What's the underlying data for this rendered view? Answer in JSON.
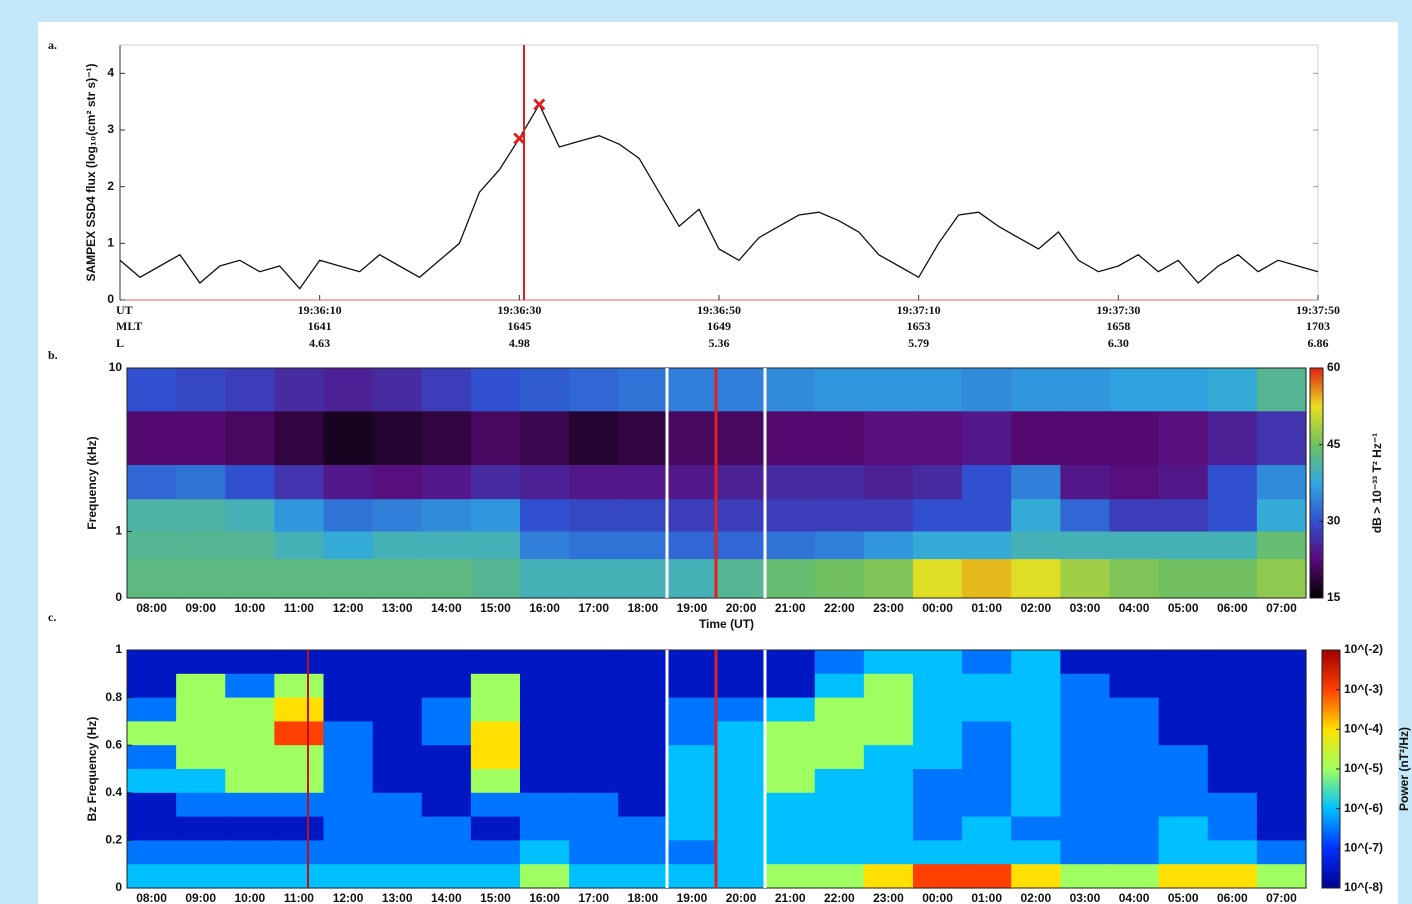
{
  "chart_data": [
    {
      "type": "line",
      "panel_label": "a.",
      "ylabel": "SAMPEX SSD4 flux (log₁₀(cm² str s)⁻¹)",
      "color": "#111111",
      "x": [
        "19:35:50",
        "19:35:52",
        "19:35:54",
        "19:35:56",
        "19:35:58",
        "19:36:00",
        "19:36:02",
        "19:36:04",
        "19:36:06",
        "19:36:08",
        "19:36:10",
        "19:36:12",
        "19:36:14",
        "19:36:16",
        "19:36:18",
        "19:36:20",
        "19:36:22",
        "19:36:24",
        "19:36:26",
        "19:36:28",
        "19:36:30",
        "19:36:32",
        "19:36:34",
        "19:36:36",
        "19:36:38",
        "19:36:40",
        "19:36:42",
        "19:36:44",
        "19:36:46",
        "19:36:48",
        "19:36:50",
        "19:36:52",
        "19:36:54",
        "19:36:56",
        "19:36:58",
        "19:37:00",
        "19:37:02",
        "19:37:04",
        "19:37:06",
        "19:37:08",
        "19:37:10",
        "19:37:12",
        "19:37:14",
        "19:37:16",
        "19:37:18",
        "19:37:20",
        "19:37:22",
        "19:37:24",
        "19:37:26",
        "19:37:28",
        "19:37:30",
        "19:37:32",
        "19:37:34",
        "19:37:36",
        "19:37:38",
        "19:37:40",
        "19:37:42",
        "19:37:44",
        "19:37:46",
        "19:37:48",
        "19:37:50"
      ],
      "values": [
        0.7,
        0.4,
        0.6,
        0.8,
        0.3,
        0.6,
        0.7,
        0.5,
        0.6,
        0.2,
        0.7,
        0.6,
        0.5,
        0.8,
        0.6,
        0.4,
        0.7,
        1.0,
        1.9,
        2.3,
        2.85,
        3.45,
        2.7,
        2.8,
        2.9,
        2.75,
        2.5,
        1.9,
        1.3,
        1.6,
        0.9,
        0.7,
        1.1,
        1.3,
        1.5,
        1.55,
        1.4,
        1.2,
        0.8,
        0.6,
        0.4,
        1.0,
        1.5,
        1.55,
        1.3,
        1.1,
        0.9,
        1.2,
        0.7,
        0.5,
        0.6,
        0.8,
        0.5,
        0.7,
        0.3,
        0.6,
        0.8,
        0.5,
        0.7,
        0.6,
        0.5
      ],
      "markers": {
        "color": "#e02020",
        "x": [
          "19:36:30",
          "19:36:32"
        ],
        "values": [
          2.85,
          3.45
        ]
      },
      "xlim": [
        "19:35:50",
        "19:37:50"
      ],
      "xticks": [
        "19:36:10",
        "19:36:30",
        "19:36:50",
        "19:37:10",
        "19:37:30",
        "19:37:50"
      ],
      "row_labels": [
        "UT",
        "MLT",
        "L"
      ],
      "mlt": [
        "1641",
        "1645",
        "1649",
        "1653",
        "1658",
        "1703"
      ],
      "l_shell": [
        "4.63",
        "4.98",
        "5.36",
        "5.79",
        "6.30",
        "6.86"
      ],
      "ylim": [
        0,
        4.5
      ],
      "yticks": [
        0,
        1,
        2,
        3,
        4
      ]
    },
    {
      "type": "heatmap",
      "panel_label": "b.",
      "ylabel": "Frequency (kHz)",
      "xlabel": "Time (UT)",
      "categories": [
        "08:00",
        "09:00",
        "10:00",
        "11:00",
        "12:00",
        "13:00",
        "14:00",
        "15:00",
        "16:00",
        "17:00",
        "18:00",
        "19:00",
        "20:00",
        "21:00",
        "22:00",
        "23:00",
        "00:00",
        "01:00",
        "02:00",
        "03:00",
        "04:00",
        "05:00",
        "06:00",
        "07:00"
      ],
      "yscale": "log1p",
      "ylim": [
        0,
        10
      ],
      "yticks": [
        0,
        1,
        10
      ],
      "y_edges": [
        10,
        6,
        3,
        1.8,
        1,
        0.5,
        0
      ],
      "values": [
        [
          30,
          29,
          28,
          26,
          25,
          26,
          28,
          30,
          31,
          32,
          33,
          34,
          34,
          35,
          36,
          36,
          36,
          35,
          36,
          36,
          37,
          37,
          38,
          42
        ],
        [
          22,
          22,
          21,
          19,
          17,
          18,
          19,
          21,
          20,
          18,
          19,
          21,
          21,
          22,
          22,
          23,
          23,
          24,
          22,
          22,
          22,
          23,
          25,
          27
        ],
        [
          32,
          33,
          30,
          27,
          24,
          23,
          24,
          26,
          25,
          24,
          24,
          24,
          25,
          26,
          26,
          25,
          26,
          30,
          34,
          24,
          23,
          24,
          30,
          35
        ],
        [
          41,
          41,
          40,
          36,
          33,
          34,
          35,
          36,
          30,
          29,
          29,
          28,
          28,
          28,
          28,
          28,
          30,
          30,
          38,
          32,
          28,
          28,
          30,
          38
        ],
        [
          42,
          42,
          42,
          40,
          38,
          40,
          40,
          40,
          34,
          33,
          33,
          32,
          32,
          33,
          34,
          36,
          38,
          38,
          40,
          40,
          40,
          40,
          40,
          44
        ],
        [
          43,
          43,
          43,
          43,
          43,
          43,
          43,
          42,
          40,
          40,
          40,
          40,
          42,
          44,
          45,
          46,
          52,
          54,
          52,
          48,
          46,
          45,
          45,
          47
        ]
      ],
      "colormap": [
        "#000000",
        "#5a0a78",
        "#3050d0",
        "#30a8e0",
        "#70c060",
        "#e8e020",
        "#e02010"
      ],
      "clim": [
        15,
        60
      ],
      "cticks": [
        15,
        30,
        45,
        60
      ],
      "clabel": "dB > 10⁻³³ T² Hz⁻¹"
    },
    {
      "type": "heatmap",
      "panel_label": "c.",
      "ylabel": "Bz Frequency (Hz)",
      "categories": [
        "08:00",
        "09:00",
        "10:00",
        "11:00",
        "12:00",
        "13:00",
        "14:00",
        "15:00",
        "16:00",
        "17:00",
        "18:00",
        "19:00",
        "20:00",
        "21:00",
        "22:00",
        "23:00",
        "00:00",
        "01:00",
        "02:00",
        "03:00",
        "04:00",
        "05:00",
        "06:00",
        "07:00"
      ],
      "yscale": "linear",
      "ylim": [
        0,
        1
      ],
      "yticks": [
        0,
        0.2,
        0.4,
        0.6,
        0.8,
        1
      ],
      "y_edges": [
        1,
        0.9,
        0.8,
        0.7,
        0.6,
        0.5,
        0.4,
        0.3,
        0.2,
        0.1,
        0
      ],
      "values": [
        [
          3e-08,
          3e-08,
          3e-08,
          3e-08,
          3e-08,
          3e-08,
          3e-08,
          3e-08,
          3e-08,
          3e-08,
          3e-08,
          3e-08,
          3e-08,
          3e-08,
          3e-07,
          1e-06,
          1e-06,
          3e-07,
          1e-06,
          3e-08,
          3e-08,
          3e-08,
          3e-08,
          3e-08
        ],
        [
          3e-08,
          1e-05,
          3e-07,
          1e-05,
          3e-08,
          3e-08,
          3e-08,
          1e-05,
          3e-08,
          3e-08,
          3e-08,
          3e-08,
          3e-08,
          3e-08,
          1e-06,
          1e-05,
          1e-06,
          1e-06,
          1e-06,
          3e-07,
          3e-08,
          3e-08,
          3e-08,
          3e-08
        ],
        [
          3e-07,
          1e-05,
          1e-05,
          0.0001,
          3e-08,
          3e-08,
          3e-07,
          1e-05,
          3e-08,
          3e-08,
          3e-08,
          3e-07,
          3e-07,
          1e-06,
          1e-05,
          1e-05,
          1e-06,
          1e-06,
          1e-06,
          3e-07,
          3e-07,
          3e-08,
          3e-08,
          3e-08
        ],
        [
          1e-05,
          1e-05,
          1e-05,
          0.001,
          3e-07,
          3e-08,
          3e-07,
          0.0001,
          3e-08,
          3e-08,
          3e-08,
          3e-07,
          1e-06,
          1e-05,
          1e-05,
          1e-05,
          1e-06,
          3e-07,
          1e-06,
          3e-07,
          3e-07,
          3e-08,
          3e-08,
          3e-08
        ],
        [
          3e-07,
          1e-05,
          1e-05,
          1e-05,
          3e-07,
          3e-08,
          3e-08,
          0.0001,
          3e-08,
          3e-08,
          3e-08,
          1e-06,
          1e-06,
          1e-05,
          1e-05,
          1e-06,
          1e-06,
          3e-07,
          1e-06,
          3e-07,
          3e-07,
          3e-07,
          3e-08,
          3e-08
        ],
        [
          1e-06,
          1e-06,
          1e-05,
          1e-05,
          3e-07,
          3e-08,
          3e-08,
          1e-05,
          3e-08,
          3e-08,
          3e-08,
          1e-06,
          1e-06,
          1e-05,
          1e-06,
          1e-06,
          3e-07,
          3e-07,
          1e-06,
          3e-07,
          3e-07,
          3e-07,
          3e-08,
          3e-08
        ],
        [
          3e-08,
          3e-07,
          3e-07,
          3e-07,
          3e-07,
          3e-07,
          3e-08,
          3e-07,
          3e-07,
          3e-07,
          3e-08,
          1e-06,
          1e-06,
          1e-06,
          1e-06,
          1e-06,
          3e-07,
          3e-07,
          1e-06,
          3e-07,
          3e-07,
          3e-07,
          3e-07,
          3e-08
        ],
        [
          3e-08,
          3e-08,
          3e-08,
          3e-08,
          3e-07,
          3e-07,
          3e-07,
          3e-08,
          3e-07,
          3e-07,
          3e-07,
          1e-06,
          1e-06,
          1e-06,
          1e-06,
          1e-06,
          3e-07,
          1e-06,
          3e-07,
          3e-07,
          3e-07,
          1e-06,
          3e-07,
          3e-08
        ],
        [
          3e-07,
          3e-07,
          3e-07,
          3e-07,
          3e-07,
          3e-07,
          3e-07,
          3e-07,
          1e-06,
          3e-07,
          3e-07,
          3e-07,
          1e-06,
          1e-06,
          1e-06,
          1e-06,
          1e-06,
          1e-06,
          1e-06,
          3e-07,
          3e-07,
          1e-06,
          1e-06,
          3e-07
        ],
        [
          1e-06,
          1e-06,
          1e-06,
          1e-06,
          1e-06,
          1e-06,
          1e-06,
          1e-06,
          1e-05,
          1e-06,
          1e-06,
          1e-06,
          1e-06,
          1e-05,
          1e-05,
          0.0001,
          0.001,
          0.001,
          0.0001,
          1e-05,
          1e-05,
          0.0001,
          0.0001,
          1e-05
        ]
      ],
      "colormap": [
        "#00008f",
        "#0030ff",
        "#00c0ff",
        "#a0ff60",
        "#ffe000",
        "#ff4000",
        "#a00000"
      ],
      "log_color": true,
      "clim": [
        1e-08,
        0.01
      ],
      "cticks": [
        {
          "value": 0.01,
          "label": "10^(-2)"
        },
        {
          "value": 0.001,
          "label": "10^(-3)"
        },
        {
          "value": 0.0001,
          "label": "10^(-4)"
        },
        {
          "value": 1e-05,
          "label": "10^(-5)"
        },
        {
          "value": 1e-06,
          "label": "10^(-6)"
        },
        {
          "value": 1e-07,
          "label": "10^(-7)"
        },
        {
          "value": 1e-08,
          "label": "10^(-8)"
        }
      ],
      "clabel": "Power (nT²/Hz)"
    }
  ]
}
